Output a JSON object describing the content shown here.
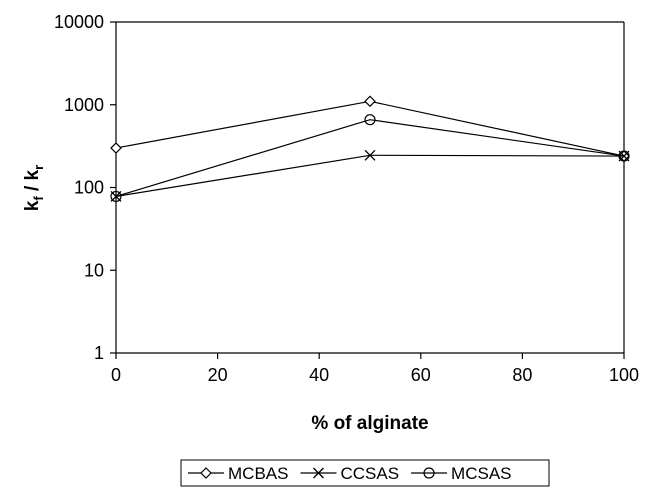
{
  "chart_data": {
    "type": "line",
    "x": [
      0,
      50,
      100
    ],
    "xlabel": "% of alginate",
    "ylabel": {
      "base1": "k",
      "sub1": "f",
      "sep": " / ",
      "base2": "k",
      "sub2": "r"
    },
    "xlim": [
      0,
      100
    ],
    "ylim": [
      1,
      10000
    ],
    "yscale": "log",
    "xticks": [
      "0",
      "20",
      "40",
      "60",
      "80",
      "100"
    ],
    "yticks": [
      "1",
      "10",
      "100",
      "1000",
      "10000"
    ],
    "grid": false,
    "legend_position": "bottom",
    "series": [
      {
        "name": "MCBAS",
        "marker": "diamond",
        "values": [
          300,
          1100,
          240
        ]
      },
      {
        "name": "CCSAS",
        "marker": "x",
        "values": [
          78,
          245,
          240
        ]
      },
      {
        "name": "MCSAS",
        "marker": "circle",
        "values": [
          78,
          660,
          240
        ]
      }
    ],
    "colors": {
      "line": "#000000",
      "background": "#ffffff"
    }
  }
}
